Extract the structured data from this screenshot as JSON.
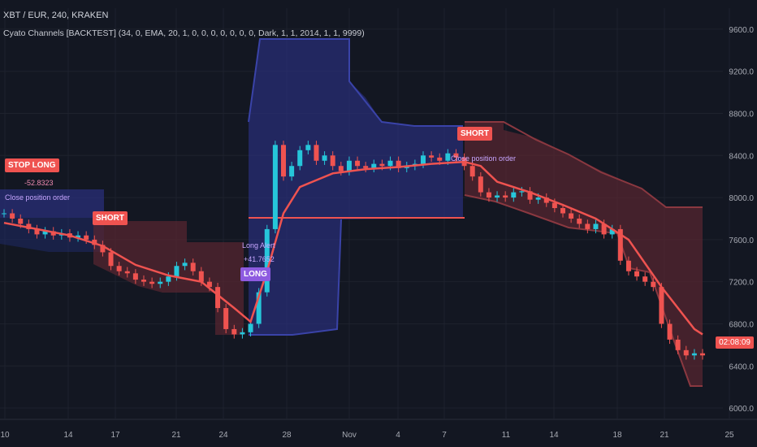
{
  "header": {
    "symbol_line": "XBT / EUR, 240, KRAKEN",
    "indicator_line": "Cyato Channels [BACKTEST] (34, 0, EMA, 20, 1, 0, 0, 0, 0, 0, 0, 0, Dark, 1, 1, 2014, 1, 1, 9999)"
  },
  "colors": {
    "background": "#131722",
    "bull": "#26c6da",
    "bear": "#ef5350",
    "channel_blue": "#2a2f7a",
    "channel_red": "#5a2730",
    "signal_red": "#ef5350",
    "signal_purple": "#8e5be0"
  },
  "signals": {
    "stop_long": "STOP LONG",
    "stop_long_value": "-52.8323",
    "close_position_1": "Close position order",
    "short_1": "SHORT",
    "long": "LONG",
    "long_note_1": "Long Alert",
    "long_note_2": "+41.7652",
    "short_2": "SHORT",
    "close_position_2": "Close position order"
  },
  "last_price_label": "02:08:09",
  "chart_data": {
    "type": "line",
    "title": "XBT / EUR, 240, KRAKEN",
    "ylim": [
      5900,
      9800
    ],
    "y_ticks": [
      "9600.0",
      "9200.0",
      "8800.0",
      "8400.0",
      "8000.0",
      "7600.0",
      "7200.0",
      "6800.0",
      "6400.0",
      "6000.0"
    ],
    "x_ticks": [
      "10",
      "14",
      "17",
      "21",
      "24",
      "28",
      "Nov",
      "4",
      "7",
      "11",
      "14",
      "18",
      "21",
      "25"
    ],
    "series": [
      {
        "name": "price",
        "x": [
          0,
          1,
          2,
          3,
          4,
          5,
          6,
          7,
          8,
          9,
          10,
          11,
          12,
          13,
          14,
          15,
          16,
          17,
          18,
          19,
          20,
          21,
          22,
          23,
          24,
          25,
          26,
          27,
          28,
          29,
          30,
          31,
          32,
          33,
          34,
          35,
          36,
          37,
          38,
          39,
          40,
          41,
          42,
          43,
          44,
          45,
          46,
          47,
          48,
          49,
          50,
          51,
          52,
          53,
          54,
          55,
          56,
          57,
          58,
          59,
          60,
          61,
          62,
          63,
          64,
          65,
          66,
          67,
          68,
          69,
          70,
          71,
          72,
          73,
          74,
          75,
          76,
          77,
          78,
          79,
          80,
          81,
          82,
          83,
          84,
          85
        ],
        "values": [
          7850,
          7800,
          7750,
          7700,
          7650,
          7680,
          7640,
          7660,
          7620,
          7640,
          7600,
          7550,
          7480,
          7350,
          7300,
          7280,
          7220,
          7200,
          7180,
          7200,
          7250,
          7350,
          7380,
          7300,
          7200,
          7150,
          6950,
          6750,
          6700,
          6720,
          6800,
          7100,
          7700,
          8500,
          8200,
          8300,
          8450,
          8500,
          8350,
          8400,
          8300,
          8250,
          8350,
          8300,
          8280,
          8320,
          8300,
          8350,
          8280,
          8300,
          8320,
          8400,
          8380,
          8350,
          8420,
          8380,
          8300,
          8200,
          8050,
          8000,
          8020,
          8000,
          8050,
          8060,
          7980,
          8000,
          7950,
          7900,
          7850,
          7800,
          7750,
          7700,
          7750,
          7650,
          7700,
          7400,
          7300,
          7250,
          7200,
          7150,
          6800,
          6650,
          6550,
          6500,
          6520,
          6500
        ]
      },
      {
        "name": "ema",
        "x": [
          0,
          4,
          8,
          12,
          16,
          20,
          24,
          28,
          30,
          32,
          34,
          36,
          40,
          44,
          48,
          52,
          56,
          58,
          60,
          64,
          68,
          72,
          76,
          80,
          84,
          85
        ],
        "values": [
          7760,
          7700,
          7640,
          7540,
          7360,
          7260,
          7200,
          6950,
          6820,
          7300,
          7850,
          8100,
          8230,
          8270,
          8290,
          8320,
          8340,
          8300,
          8150,
          8050,
          7930,
          7800,
          7600,
          7150,
          6750,
          6700
        ]
      }
    ],
    "signals": [
      {
        "index": 1,
        "label": "STOP LONG"
      },
      {
        "index": 11,
        "label": "SHORT"
      },
      {
        "index": 31,
        "label": "LONG"
      },
      {
        "index": 57,
        "label": "SHORT"
      }
    ]
  }
}
